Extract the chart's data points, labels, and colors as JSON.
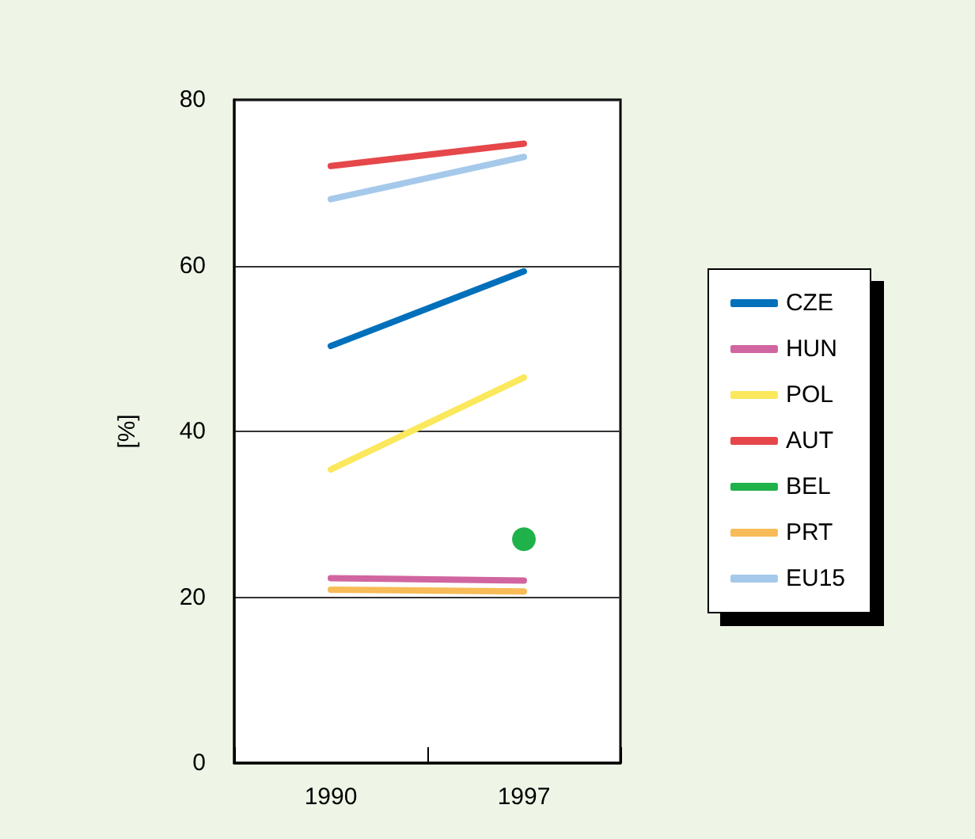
{
  "chart_data": {
    "type": "line",
    "ylabel": "[%]",
    "categories": [
      "1990",
      "1997"
    ],
    "ylim": [
      0,
      80
    ],
    "yticks": [
      0,
      20,
      40,
      60,
      80
    ],
    "grid": "y",
    "legend": "right",
    "marker": "none",
    "line_style": "solid",
    "series": [
      {
        "name": "CZE",
        "color": "#0070bb",
        "values": [
          50.3,
          59.3
        ]
      },
      {
        "name": "HUN",
        "color": "#d165a0",
        "values": [
          22.3,
          22.0
        ]
      },
      {
        "name": "POL",
        "color": "#fbe85c",
        "values": [
          35.4,
          46.5
        ]
      },
      {
        "name": "AUT",
        "color": "#e5474a",
        "values": [
          72.0,
          74.7
        ]
      },
      {
        "name": "BEL",
        "color": "#1fb24a",
        "type": "scatter",
        "marker": "circle",
        "values": [
          null,
          27.0
        ]
      },
      {
        "name": "PRT",
        "color": "#f7bb57",
        "values": [
          20.9,
          20.7
        ]
      },
      {
        "name": "EU15",
        "color": "#a5c9ea",
        "values": [
          68.0,
          73.1
        ]
      }
    ]
  }
}
